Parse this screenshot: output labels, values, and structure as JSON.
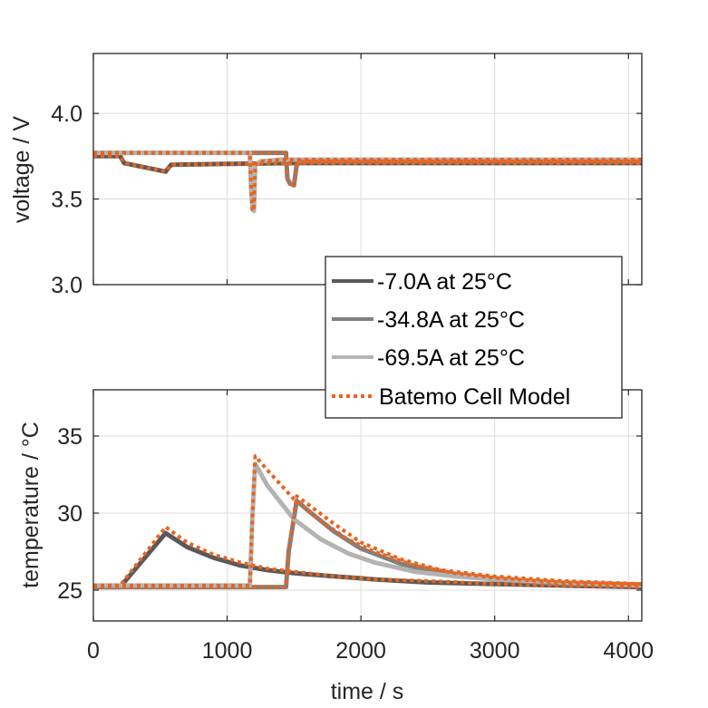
{
  "chart_data": [
    {
      "type": "line",
      "id": "voltage",
      "title": "",
      "xlabel": "",
      "ylabel": "voltage / V",
      "xlim": [
        0,
        4100
      ],
      "ylim": [
        3.0,
        4.35
      ],
      "xticks": [
        0,
        1000,
        2000,
        3000,
        4000
      ],
      "yticks": [
        3.0,
        3.5,
        4.0
      ],
      "ytick_labels": [
        "3.0",
        "3.5",
        "4.0"
      ],
      "grid": true,
      "series": [
        {
          "name": "-7.0A at 25°C",
          "color": "#595959",
          "style": "solid",
          "x": [
            0,
            200,
            230,
            540,
            580,
            1000,
            1500,
            2000,
            3000,
            4100
          ],
          "y": [
            3.75,
            3.75,
            3.71,
            3.66,
            3.7,
            3.705,
            3.71,
            3.71,
            3.71,
            3.71
          ]
        },
        {
          "name": "-34.8A at 25°C",
          "color": "#808080",
          "style": "solid",
          "x": [
            0,
            1000,
            1440,
            1450,
            1470,
            1500,
            1520,
            1560,
            2000,
            3000,
            4100
          ],
          "y": [
            3.77,
            3.77,
            3.77,
            3.62,
            3.59,
            3.58,
            3.7,
            3.72,
            3.72,
            3.72,
            3.72
          ]
        },
        {
          "name": "-69.5A at 25°C",
          "color": "#b3b3b3",
          "style": "solid",
          "x": [
            0,
            1170,
            1180,
            1190,
            1200,
            1210,
            1250,
            1400,
            2000,
            3000,
            4100
          ],
          "y": [
            3.77,
            3.77,
            3.55,
            3.44,
            3.43,
            3.7,
            3.72,
            3.73,
            3.73,
            3.73,
            3.73
          ]
        },
        {
          "name": "Batemo Cell Model",
          "color": "#E8641E",
          "style": "dotted",
          "segments": [
            {
              "x": [
                0,
                200,
                230,
                540,
                580,
                1000,
                1500,
                2000,
                3000,
                4100
              ],
              "y": [
                3.75,
                3.75,
                3.71,
                3.66,
                3.7,
                3.705,
                3.71,
                3.71,
                3.71,
                3.71
              ]
            },
            {
              "x": [
                0,
                1000,
                1440,
                1450,
                1470,
                1500,
                1520,
                1560,
                2000,
                3000,
                4100
              ],
              "y": [
                3.77,
                3.77,
                3.77,
                3.62,
                3.59,
                3.58,
                3.7,
                3.72,
                3.72,
                3.72,
                3.72
              ]
            },
            {
              "x": [
                0,
                1170,
                1180,
                1190,
                1200,
                1210,
                1250,
                1400,
                2000,
                3000,
                4100
              ],
              "y": [
                3.77,
                3.77,
                3.55,
                3.44,
                3.43,
                3.7,
                3.72,
                3.73,
                3.73,
                3.73,
                3.73
              ]
            }
          ]
        }
      ]
    },
    {
      "type": "line",
      "id": "temperature",
      "title": "",
      "xlabel": "time / s",
      "ylabel": "temperature / °C",
      "xlim": [
        0,
        4100
      ],
      "ylim": [
        23,
        38
      ],
      "xticks": [
        0,
        1000,
        2000,
        3000,
        4000
      ],
      "xtick_labels": [
        "0",
        "1000",
        "2000",
        "3000",
        "4000"
      ],
      "yticks": [
        25,
        30,
        35
      ],
      "ytick_labels": [
        "25",
        "30",
        "35"
      ],
      "grid": true,
      "series": [
        {
          "name": "-7.0A at 25°C",
          "color": "#595959",
          "style": "solid",
          "x": [
            0,
            200,
            540,
            700,
            900,
            1100,
            1300,
            1500,
            1800,
            2100,
            2500,
            3000,
            3500,
            4100
          ],
          "y": [
            25.2,
            25.2,
            28.7,
            27.8,
            27.1,
            26.6,
            26.3,
            26.1,
            25.9,
            25.7,
            25.5,
            25.4,
            25.3,
            25.2
          ]
        },
        {
          "name": "-34.8A at 25°C",
          "color": "#808080",
          "style": "solid",
          "x": [
            0,
            1440,
            1460,
            1520,
            1600,
            1800,
            2000,
            2300,
            2600,
            3000,
            3500,
            4100
          ],
          "y": [
            25.2,
            25.2,
            27.5,
            30.8,
            30.2,
            28.8,
            27.7,
            26.7,
            26.1,
            25.7,
            25.4,
            25.3
          ]
        },
        {
          "name": "-69.5A at 25°C",
          "color": "#b3b3b3",
          "style": "solid",
          "x": [
            0,
            1170,
            1190,
            1210,
            1300,
            1500,
            1700,
            1900,
            2100,
            2400,
            2700,
            3000,
            3500,
            4100
          ],
          "y": [
            25.3,
            25.3,
            30.0,
            33.2,
            31.8,
            29.6,
            28.3,
            27.4,
            26.8,
            26.2,
            25.9,
            25.7,
            25.5,
            25.3
          ]
        },
        {
          "name": "Batemo Cell Model",
          "color": "#E8641E",
          "style": "dotted",
          "segments": [
            {
              "x": [
                0,
                200,
                540,
                700,
                900,
                1100,
                1300,
                1500,
                1800,
                2100,
                2500,
                3000,
                3500,
                4100
              ],
              "y": [
                25.3,
                25.3,
                29.1,
                28.1,
                27.3,
                26.8,
                26.4,
                26.2,
                25.9,
                25.7,
                25.6,
                25.4,
                25.3,
                25.2
              ]
            },
            {
              "x": [
                0,
                1440,
                1460,
                1520,
                1600,
                1800,
                2000,
                2300,
                2600,
                3000,
                3500,
                4100
              ],
              "y": [
                25.2,
                25.2,
                27.5,
                31.1,
                30.6,
                29.3,
                28.1,
                27.0,
                26.3,
                25.9,
                25.6,
                25.4
              ]
            },
            {
              "x": [
                0,
                1170,
                1190,
                1210,
                1300,
                1500,
                1700,
                1900,
                2100,
                2400,
                2700,
                3000,
                3500,
                4100
              ],
              "y": [
                25.3,
                25.3,
                30.0,
                33.7,
                32.8,
                30.9,
                29.5,
                28.3,
                27.5,
                26.6,
                26.1,
                25.8,
                25.5,
                25.4
              ]
            }
          ]
        }
      ]
    }
  ],
  "legend": {
    "placement": "center-right",
    "entries": [
      {
        "label": "-7.0A at 25°C",
        "color": "#595959",
        "style": "solid"
      },
      {
        "label": "-34.8A at 25°C",
        "color": "#808080",
        "style": "solid"
      },
      {
        "label": "-69.5A at 25°C",
        "color": "#b3b3b3",
        "style": "solid"
      },
      {
        "label": "Batemo Cell Model",
        "color": "#E8641E",
        "style": "dotted"
      }
    ]
  }
}
